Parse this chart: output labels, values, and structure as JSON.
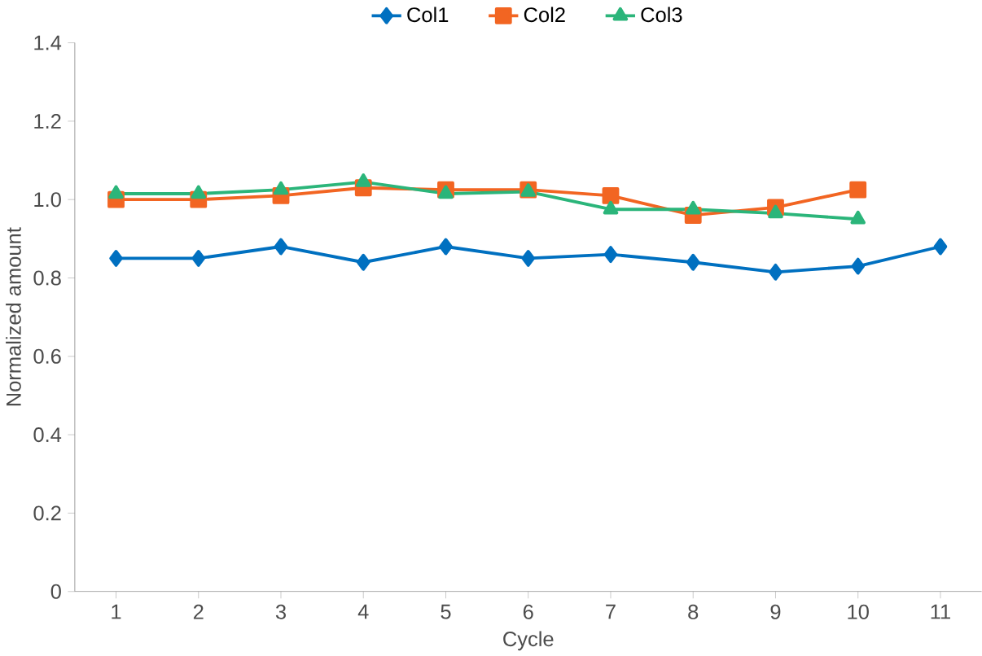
{
  "chart_data": {
    "type": "line",
    "xlabel": "Cycle",
    "ylabel": "Normalized amount",
    "categories": [
      "1",
      "2",
      "3",
      "4",
      "5",
      "6",
      "7",
      "8",
      "9",
      "10",
      "11"
    ],
    "series": [
      {
        "name": "Col1",
        "color": "#0070c0",
        "marker": "diamond",
        "values": [
          0.85,
          0.85,
          0.88,
          0.84,
          0.88,
          0.85,
          0.86,
          0.84,
          0.815,
          0.83,
          0.88
        ]
      },
      {
        "name": "Col2",
        "color": "#f26522",
        "marker": "square",
        "values": [
          1.0,
          1.0,
          1.01,
          1.03,
          1.025,
          1.025,
          1.01,
          0.96,
          0.98,
          1.025,
          null
        ]
      },
      {
        "name": "Col3",
        "color": "#2bb57a",
        "marker": "triangle",
        "values": [
          1.015,
          1.015,
          1.025,
          1.045,
          1.015,
          1.02,
          0.975,
          0.975,
          0.965,
          0.95,
          null
        ]
      }
    ],
    "ylim": [
      0,
      1.4
    ],
    "yticks": [
      0,
      0.2,
      0.4,
      0.6,
      0.8,
      {
        "value": 1.0,
        "label": "1.0"
      },
      1.2,
      1.4
    ],
    "grid": false,
    "legend": "top"
  }
}
